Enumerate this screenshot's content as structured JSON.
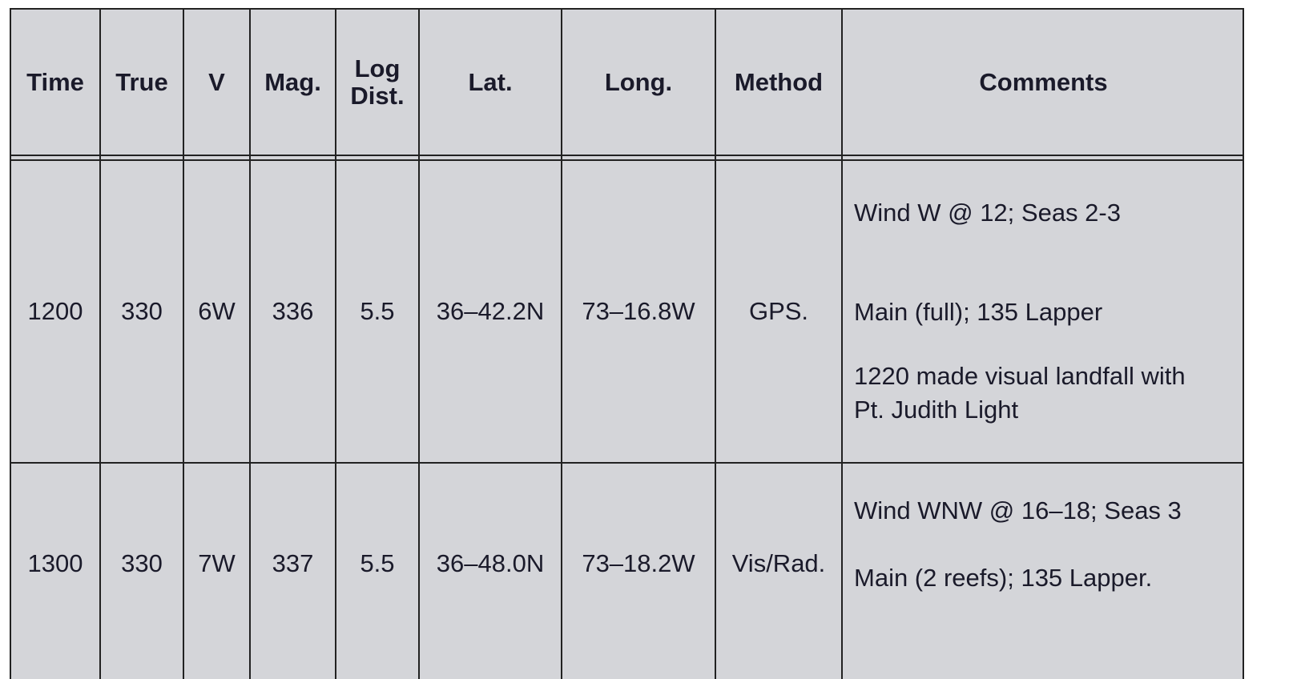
{
  "headers": [
    "Time",
    "True",
    "V",
    "Mag.",
    "Log Dist.",
    "Lat.",
    "Long.",
    "Method",
    "Comments"
  ],
  "header_log_dist": [
    "Log",
    "Dist."
  ],
  "rows": [
    {
      "time": "1200",
      "true": "330",
      "v": "6W",
      "mag": "336",
      "log_dist": "5.5",
      "lat": "36–42.2N",
      "long": "73–16.8W",
      "method": "GPS.",
      "comments": [
        "Wind W @ 12; Seas 2-3",
        "Main (full); 135 Lapper",
        "1220 made visual landfall with",
        "Pt. Judith Light"
      ]
    },
    {
      "time": "1300",
      "true": "330",
      "v": "7W",
      "mag": "337",
      "log_dist": "5.5",
      "lat": "36–48.0N",
      "long": "73–18.2W",
      "method": "Vis/Rad.",
      "comments": [
        "Wind WNW @ 16–18; Seas 3",
        "Main (2 reefs); 135 Lapper."
      ]
    }
  ]
}
